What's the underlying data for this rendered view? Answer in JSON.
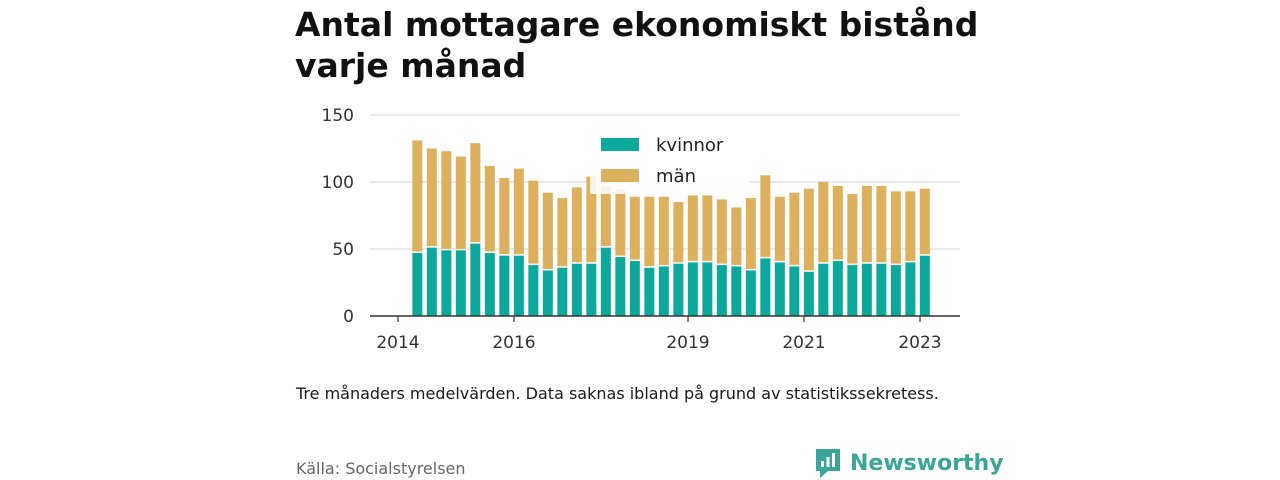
{
  "title": "Antal mottagare ekonomiskt bistånd varje månad",
  "note": "Tre månaders medelvärden. Data saknas ibland på grund av statistikssekretess.",
  "source": "Källa: Socialstyrelsen",
  "brand": {
    "name": "Newsworthy",
    "icon": "newsworthy-logo-icon"
  },
  "colors": {
    "kvinnor": "#0ba89b",
    "man": "#dcb05c",
    "grid": "#dddddd",
    "axis": "#333333"
  },
  "chart_data": {
    "type": "bar",
    "stacked": true,
    "ylim": [
      0,
      150
    ],
    "yticks": [
      0,
      50,
      100,
      150
    ],
    "xticks": [
      "2014",
      "2016",
      "2019",
      "2021",
      "2023"
    ],
    "grid": true,
    "legend_position": "top-center",
    "series": [
      {
        "name": "kvinnor",
        "values": [
          47,
          51,
          49,
          49,
          54,
          47,
          45,
          45,
          38,
          34,
          36,
          39,
          39,
          51,
          44,
          41,
          36,
          37,
          39,
          40,
          40,
          38,
          37,
          34,
          43,
          40,
          37,
          33,
          39,
          41,
          38,
          39,
          39,
          38,
          40,
          45
        ]
      },
      {
        "name": "män",
        "values": [
          84,
          74,
          74,
          70,
          75,
          65,
          58,
          65,
          63,
          58,
          52,
          57,
          65,
          46,
          51,
          48,
          53,
          52,
          46,
          50,
          50,
          49,
          44,
          54,
          62,
          49,
          55,
          62,
          61,
          56,
          53,
          58,
          58,
          55,
          53,
          50
        ]
      }
    ]
  }
}
